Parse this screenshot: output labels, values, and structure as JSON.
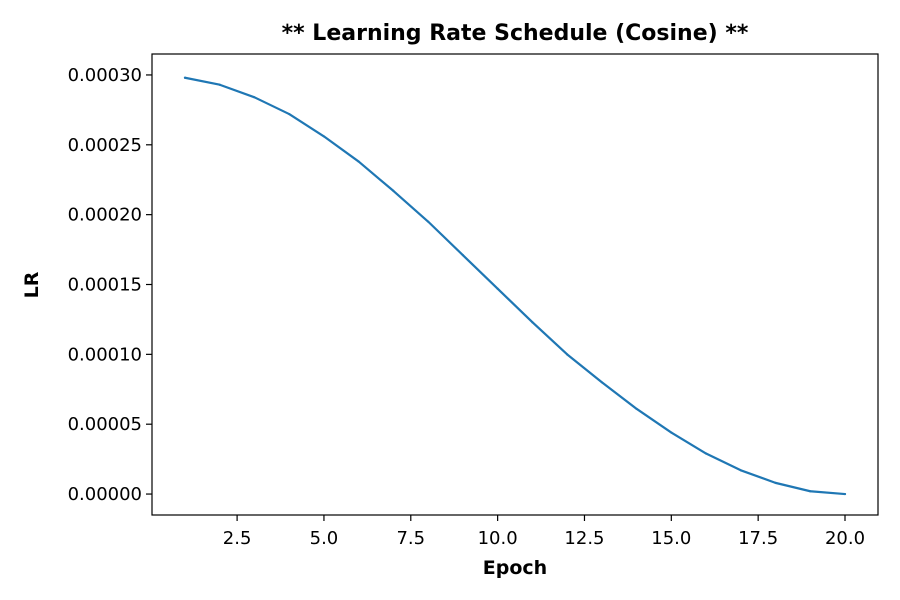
{
  "chart_data": {
    "type": "line",
    "title": "** Learning Rate Schedule (Cosine) **",
    "xlabel": "Epoch",
    "ylabel": "LR",
    "xlim": [
      0.05,
      20.95
    ],
    "ylim": [
      -1.5e-05,
      0.000315
    ],
    "x_ticks": [
      {
        "value": 2.5,
        "label": "2.5"
      },
      {
        "value": 5.0,
        "label": "5.0"
      },
      {
        "value": 7.5,
        "label": "7.5"
      },
      {
        "value": 10.0,
        "label": "10.0"
      },
      {
        "value": 12.5,
        "label": "12.5"
      },
      {
        "value": 15.0,
        "label": "15.0"
      },
      {
        "value": 17.5,
        "label": "17.5"
      },
      {
        "value": 20.0,
        "label": "20.0"
      }
    ],
    "y_ticks": [
      {
        "value": 0.0,
        "label": "0.00000"
      },
      {
        "value": 5e-05,
        "label": "0.00005"
      },
      {
        "value": 0.0001,
        "label": "0.00010"
      },
      {
        "value": 0.00015,
        "label": "0.00015"
      },
      {
        "value": 0.0002,
        "label": "0.00020"
      },
      {
        "value": 0.00025,
        "label": "0.00025"
      },
      {
        "value": 0.0003,
        "label": "0.00030"
      }
    ],
    "grid": false,
    "series": [
      {
        "color": "#1f77b4",
        "x": [
          1,
          2,
          3,
          4,
          5,
          6,
          7,
          8,
          9,
          10,
          11,
          12,
          13,
          14,
          15,
          16,
          17,
          18,
          19,
          20
        ],
        "y": [
          0.000298,
          0.000293,
          0.000284,
          0.000272,
          0.000256,
          0.000238,
          0.000217,
          0.000195,
          0.000171,
          0.000147,
          0.000123,
          0.0001,
          8e-05,
          6.1e-05,
          4.4e-05,
          2.9e-05,
          1.7e-05,
          8e-06,
          2e-06,
          0.0
        ]
      }
    ]
  }
}
